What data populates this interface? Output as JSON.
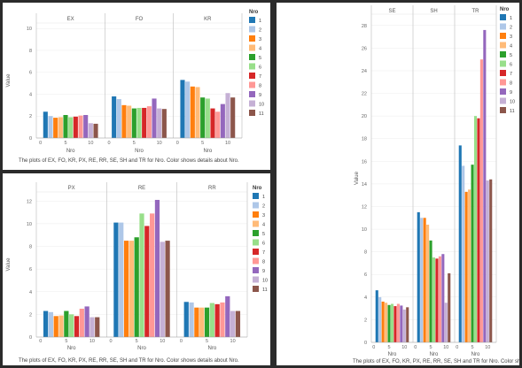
{
  "colors": [
    "#1f77b4",
    "#aec7e8",
    "#ff7f0e",
    "#ffbb78",
    "#2ca02c",
    "#98df8a",
    "#d62728",
    "#ff9896",
    "#9467bd",
    "#c5b0d5",
    "#8c564b"
  ],
  "legend": {
    "title": "Nro",
    "items": [
      "1",
      "2",
      "3",
      "4",
      "5",
      "6",
      "7",
      "8",
      "9",
      "10",
      "11"
    ]
  },
  "chart_data": [
    {
      "type": "bar",
      "caption": "The plots of EX, FO, KR, PX, RE, RR, SE, SH and TR for Nro.  Color shows details about Nro.",
      "ylabel": "Value",
      "xlabel": "Nro",
      "ylim": [
        0,
        10.5
      ],
      "yticks": [
        0,
        2,
        4,
        6,
        8,
        10
      ],
      "xticks": [
        0,
        5,
        10
      ],
      "categories": [
        "1",
        "2",
        "3",
        "4",
        "5",
        "6",
        "7",
        "8",
        "9",
        "10",
        "11"
      ],
      "facets": [
        {
          "name": "EX",
          "values": [
            2.4,
            2.0,
            1.85,
            1.9,
            2.1,
            1.9,
            1.95,
            2.05,
            2.1,
            1.35,
            1.3
          ]
        },
        {
          "name": "FO",
          "values": [
            3.8,
            3.55,
            3.0,
            2.95,
            2.7,
            2.75,
            2.75,
            2.9,
            3.6,
            2.7,
            2.65
          ]
        },
        {
          "name": "KR",
          "values": [
            5.3,
            5.15,
            4.7,
            4.65,
            3.7,
            3.6,
            2.7,
            2.4,
            3.1,
            4.1,
            3.7
          ]
        }
      ]
    },
    {
      "type": "bar",
      "caption": "The plots of EX, FO, KR, PX, RE, RR, SE, SH and TR for Nro.  Color shows details about Nro.",
      "ylabel": "Value",
      "xlabel": "Nro",
      "ylim": [
        0,
        12.8
      ],
      "yticks": [
        0,
        2,
        4,
        6,
        8,
        10,
        12
      ],
      "xticks": [
        0,
        5,
        10
      ],
      "categories": [
        "1",
        "2",
        "3",
        "4",
        "5",
        "6",
        "7",
        "8",
        "9",
        "10",
        "11"
      ],
      "facets": [
        {
          "name": "PX",
          "values": [
            2.3,
            2.2,
            1.85,
            1.9,
            2.3,
            2.0,
            1.85,
            2.5,
            2.7,
            1.75,
            1.75
          ]
        },
        {
          "name": "RE",
          "values": [
            10.1,
            10.1,
            8.5,
            8.5,
            8.8,
            10.9,
            9.8,
            10.9,
            12.1,
            8.4,
            8.5
          ]
        },
        {
          "name": "RR",
          "values": [
            3.1,
            3.05,
            2.6,
            2.6,
            2.6,
            3.0,
            2.9,
            3.05,
            3.6,
            2.3,
            2.3
          ]
        }
      ]
    },
    {
      "type": "bar",
      "caption": "The plots of EX, FO, KR, PX, RE, RR, SE, SH and TR for Nro.  Color shows details about Nro.",
      "ylabel": "Value",
      "xlabel": "Nro",
      "ylim": [
        0,
        29
      ],
      "yticks": [
        0,
        2,
        4,
        6,
        8,
        10,
        12,
        14,
        16,
        18,
        20,
        22,
        24,
        26,
        28
      ],
      "xticks": [
        0,
        5,
        10
      ],
      "categories": [
        "1",
        "2",
        "3",
        "4",
        "5",
        "6",
        "7",
        "8",
        "9",
        "10",
        "11"
      ],
      "facets": [
        {
          "name": "SE",
          "values": [
            4.6,
            4.0,
            3.6,
            3.5,
            3.3,
            3.4,
            3.2,
            3.4,
            3.25,
            2.9,
            3.1
          ]
        },
        {
          "name": "SH",
          "values": [
            11.5,
            11.0,
            11.0,
            10.4,
            9.0,
            7.5,
            7.4,
            7.6,
            7.8,
            3.5,
            6.1
          ]
        },
        {
          "name": "TR",
          "values": [
            17.4,
            15.6,
            13.3,
            13.5,
            15.7,
            20.0,
            19.8,
            25.0,
            27.6,
            14.3,
            14.4
          ]
        }
      ]
    }
  ]
}
